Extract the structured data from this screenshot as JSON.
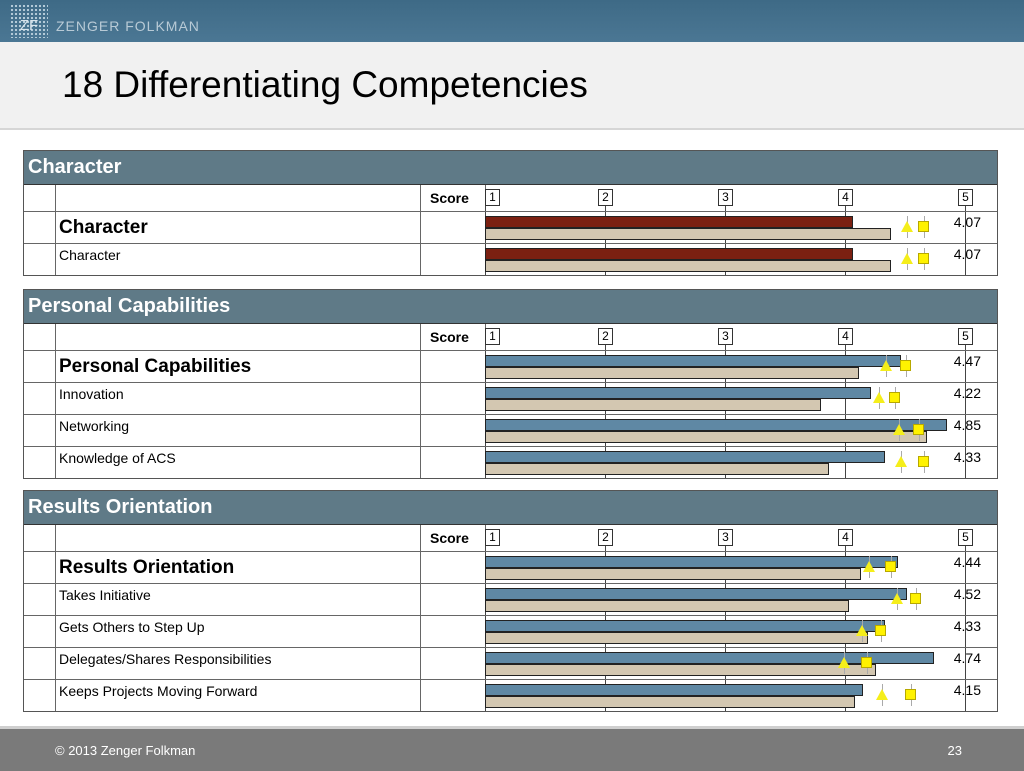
{
  "header": {
    "logo_text": "ZF",
    "brand": "ZENGER FOLKMAN",
    "title": "18 Differentiating Competencies"
  },
  "axis": {
    "score_label": "Score",
    "ticks": [
      "1",
      "2",
      "3",
      "4",
      "5"
    ],
    "min": 1,
    "max": 5
  },
  "colors": {
    "character_bar": "#7b2011",
    "bar": "#5f88a4",
    "comparison": "#d3c7b1",
    "marker": "#fff200"
  },
  "sections": [
    {
      "title": "Character",
      "rows": [
        {
          "label": "Character",
          "score": "4.07",
          "value": 4.07,
          "comparison": 4.38,
          "triangle": 4.52,
          "square": 4.66,
          "summary": true
        },
        {
          "label": "Character",
          "score": "4.07",
          "value": 4.07,
          "comparison": 4.38,
          "triangle": 4.52,
          "square": 4.66
        }
      ]
    },
    {
      "title": "Personal Capabilities",
      "rows": [
        {
          "label": "Personal Capabilities",
          "score": "4.47",
          "value": 4.47,
          "comparison": 4.12,
          "triangle": 4.34,
          "square": 4.51,
          "summary": true
        },
        {
          "label": "Innovation",
          "score": "4.22",
          "value": 4.22,
          "comparison": 3.8,
          "triangle": 4.28,
          "square": 4.42
        },
        {
          "label": "Networking",
          "score": "4.85",
          "value": 4.85,
          "comparison": 4.68,
          "triangle": 4.45,
          "square": 4.62
        },
        {
          "label": "Knowledge of ACS",
          "score": "4.33",
          "value": 4.33,
          "comparison": 3.87,
          "triangle": 4.47,
          "square": 4.66
        }
      ]
    },
    {
      "title": "Results Orientation",
      "rows": [
        {
          "label": "Results Orientation",
          "score": "4.44",
          "value": 4.44,
          "comparison": 4.13,
          "triangle": 4.2,
          "square": 4.38,
          "summary": true
        },
        {
          "label": "Takes Initiative",
          "score": "4.52",
          "value": 4.52,
          "comparison": 4.03,
          "triangle": 4.43,
          "square": 4.59
        },
        {
          "label": "Gets Others to Step Up",
          "score": "4.33",
          "value": 4.33,
          "comparison": 4.19,
          "triangle": 4.14,
          "square": 4.3
        },
        {
          "label": "Delegates/Shares Responsibilities",
          "score": "4.74",
          "value": 4.74,
          "comparison": 4.26,
          "triangle": 3.99,
          "square": 4.18
        },
        {
          "label": "Keeps Projects Moving Forward",
          "score": "4.15",
          "value": 4.15,
          "comparison": 4.08,
          "triangle": 4.31,
          "square": 4.55
        }
      ]
    }
  ],
  "footer": {
    "copyright": "© 2013  Zenger Folkman",
    "page": "23"
  }
}
